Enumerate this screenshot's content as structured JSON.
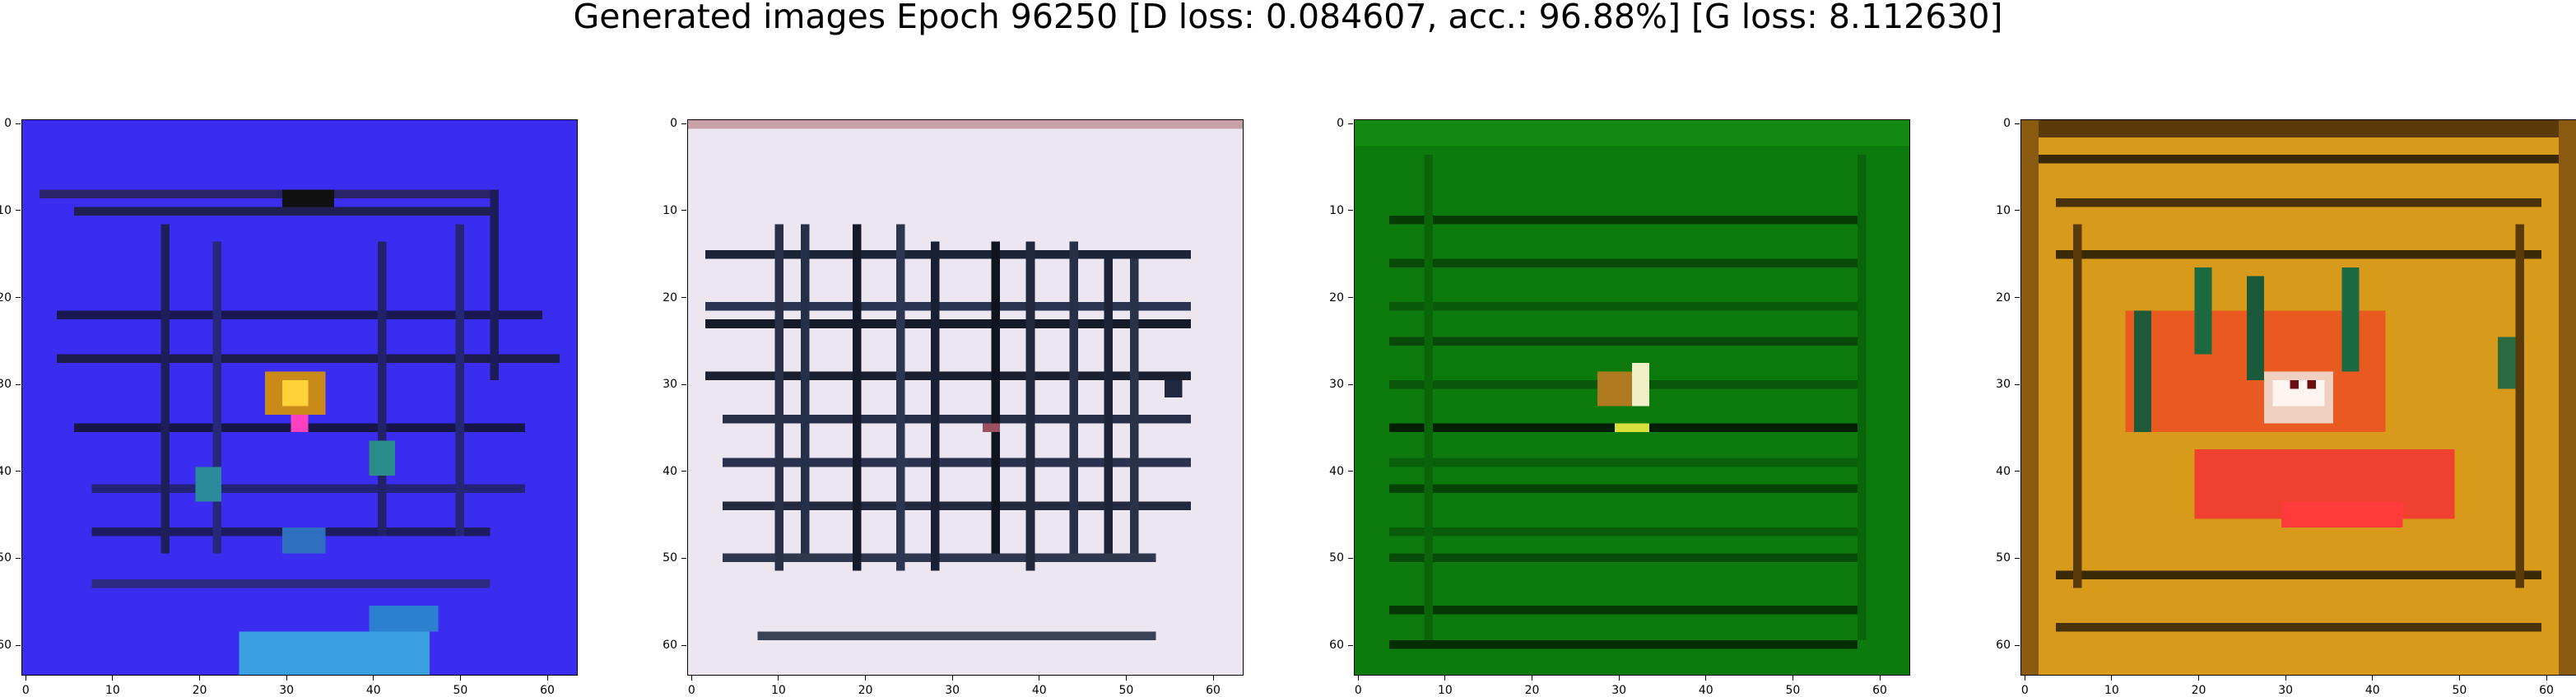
{
  "figure": {
    "title": "Generated images Epoch 96250 [D loss: 0.084607, acc.: 96.88%] [G loss: 8.112630]"
  },
  "axes": {
    "ticks": [
      "0",
      "10",
      "20",
      "30",
      "40",
      "50",
      "60"
    ],
    "tick_values": [
      0,
      10,
      20,
      30,
      40,
      50,
      60
    ],
    "extent": [
      -0.5,
      63.5
    ]
  },
  "panels": [
    {
      "name": "sample-1",
      "base_color": "#3b2df0",
      "line_color": "#1a1a40",
      "grid": "sparse"
    },
    {
      "name": "sample-2",
      "base_color": "#ece6f0",
      "line_color": "#10162a",
      "grid": "dense"
    },
    {
      "name": "sample-3",
      "base_color": "#0c7a0c",
      "line_color": "#063d06",
      "grid": "horizontal"
    },
    {
      "name": "sample-4",
      "base_color": "#d89a1a",
      "line_color": "#3a2a08",
      "grid": "dense"
    }
  ]
}
